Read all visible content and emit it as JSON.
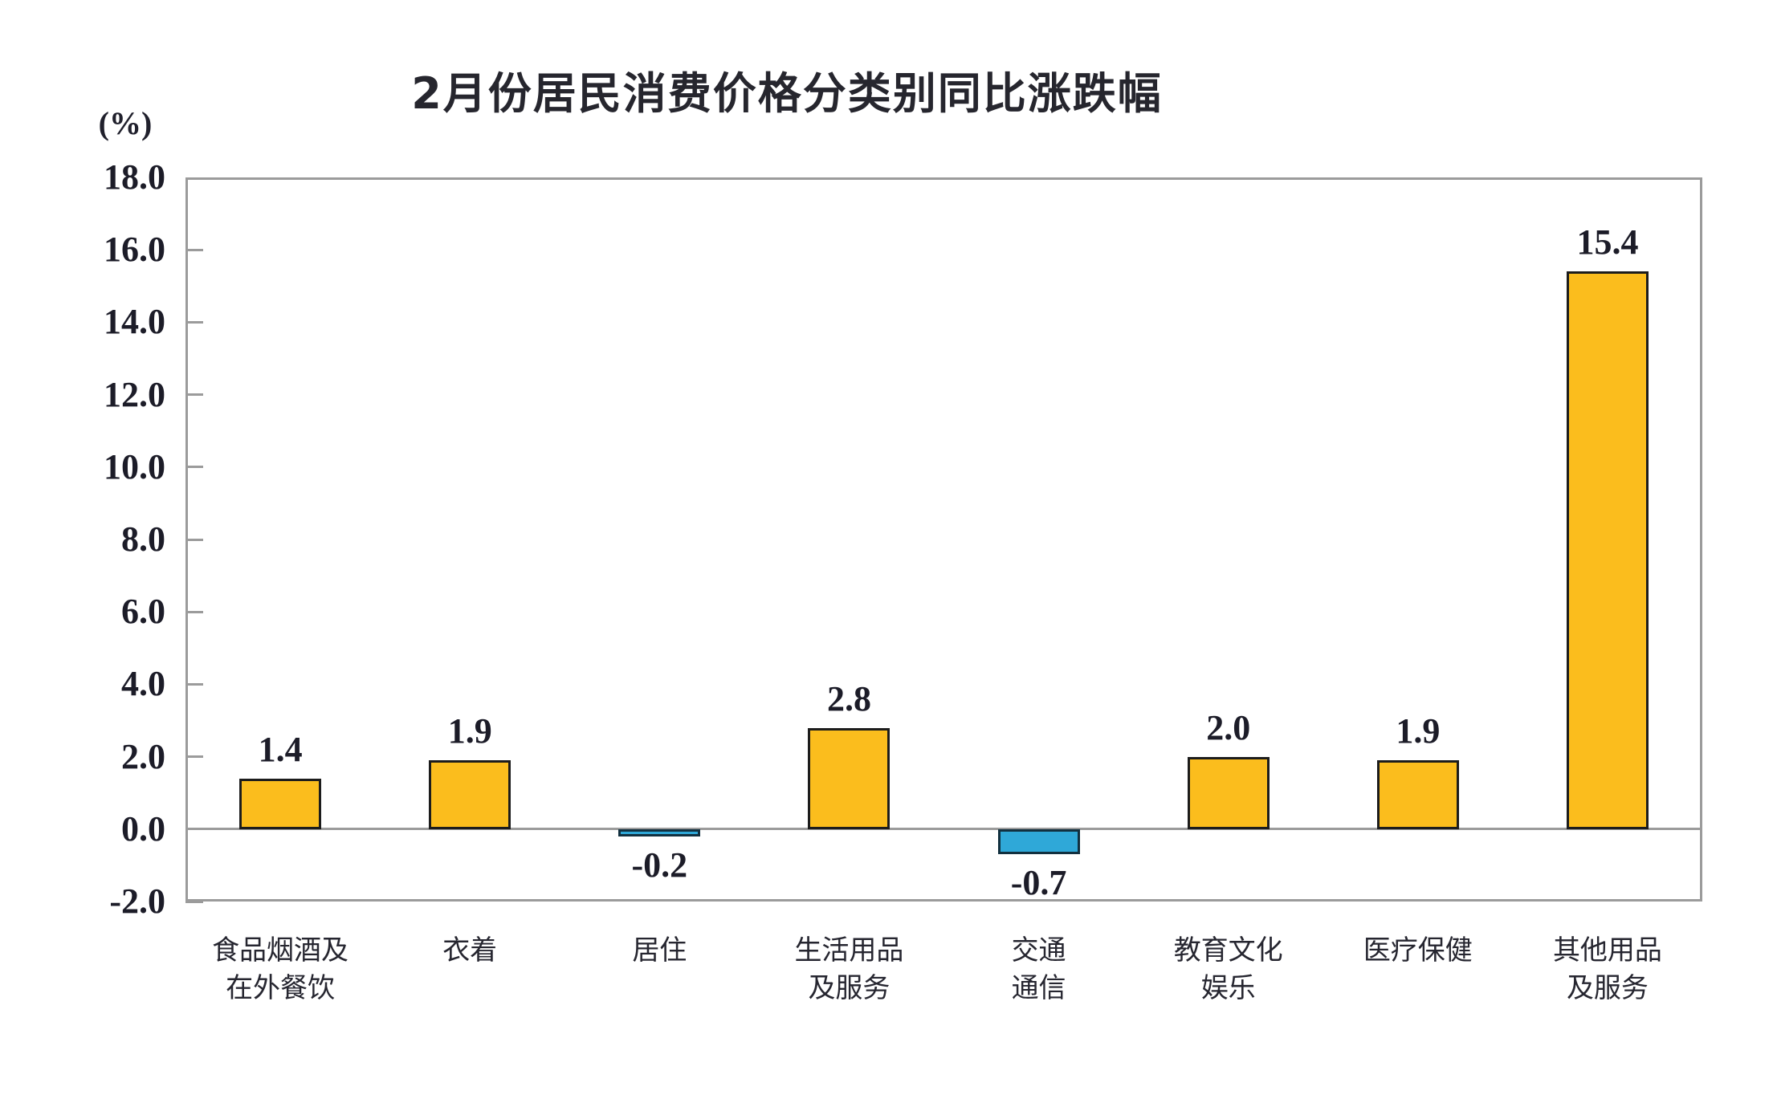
{
  "chart_data": {
    "type": "bar",
    "title": "2月份居民消费价格分类别同比涨跌幅",
    "unit_label": "(%)",
    "categories": [
      "食品烟酒及\n在外餐饮",
      "衣着",
      "居住",
      "生活用品\n及服务",
      "交通\n通信",
      "教育文化\n娱乐",
      "医疗保健",
      "其他用品\n及服务"
    ],
    "values": [
      1.4,
      1.9,
      -0.2,
      2.8,
      -0.7,
      2.0,
      1.9,
      15.4
    ],
    "value_labels": [
      "1.4",
      "1.9",
      "-0.2",
      "2.8",
      "-0.7",
      "2.0",
      "1.9",
      "15.4"
    ],
    "xlabel": "",
    "ylabel": "(%)",
    "ylim": [
      -2.0,
      18.0
    ],
    "ytick_step": 2.0,
    "ytick_labels": [
      "18.0",
      "16.0",
      "14.0",
      "12.0",
      "10.0",
      "8.0",
      "6.0",
      "4.0",
      "2.0",
      "0.0",
      "-2.0"
    ],
    "grid": "off",
    "legend": "none",
    "colors": {
      "positive_bar": "#fbbd1d",
      "negative_bar": "#2fa8d8",
      "positive_bar_border": "#1c1c1c",
      "negative_bar_border": "#12303f",
      "axis_line": "#9b9b9b",
      "label_text": "#1c1c28",
      "title_text": "#26262e"
    }
  }
}
